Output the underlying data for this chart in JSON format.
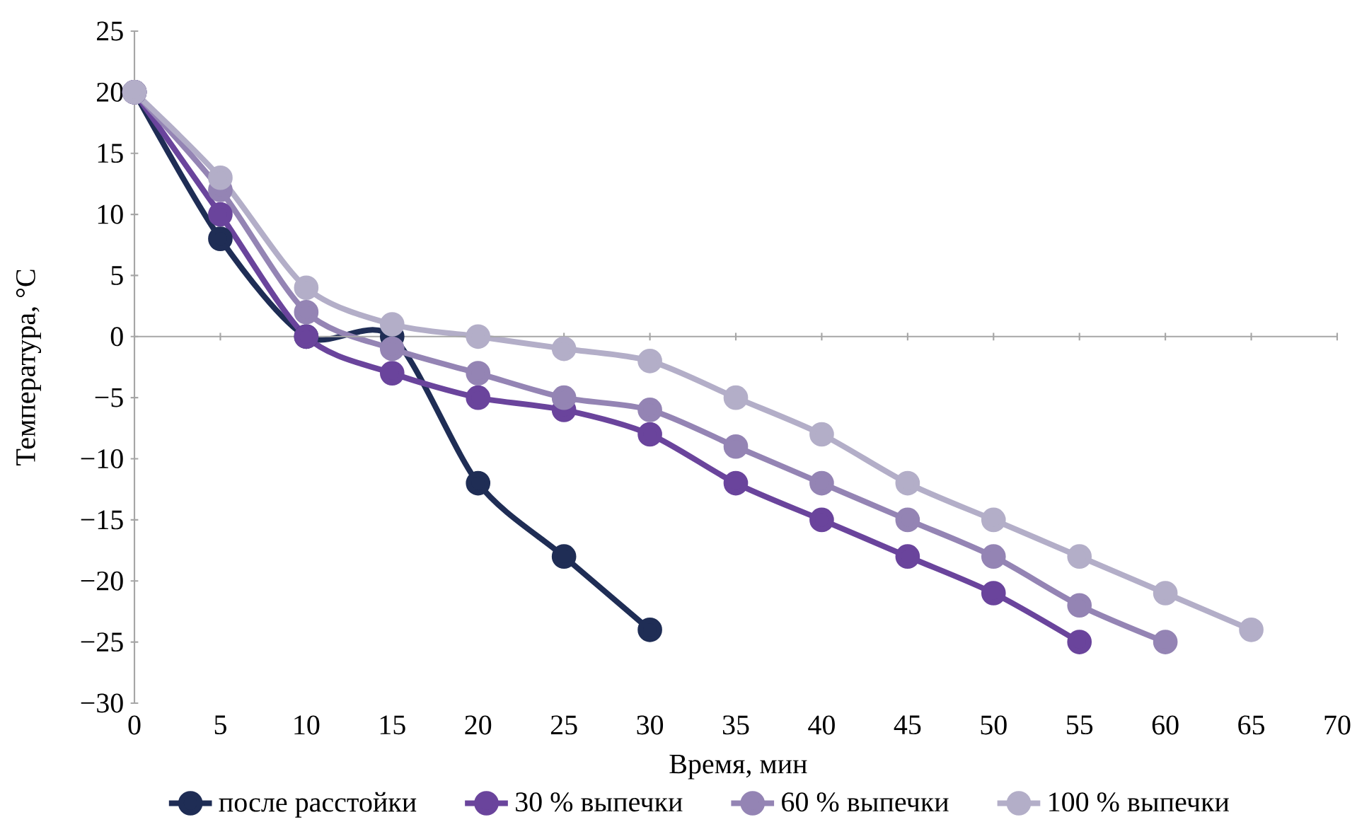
{
  "chart_data": {
    "type": "line",
    "xlabel": "Время, мин",
    "ylabel": "Температура, °C",
    "xlim": [
      0,
      70
    ],
    "xticks": [
      0,
      5,
      10,
      15,
      20,
      25,
      30,
      35,
      40,
      45,
      50,
      55,
      60,
      65,
      70
    ],
    "ylim": [
      -30,
      25
    ],
    "yticks": [
      {
        "value": -30,
        "label": "−30"
      },
      {
        "value": -25,
        "label": "−25"
      },
      {
        "value": -20,
        "label": "−20"
      },
      {
        "value": -15,
        "label": "−15"
      },
      {
        "value": -10,
        "label": "−10"
      },
      {
        "value": -5,
        "label": "−5"
      },
      0,
      5,
      10,
      15,
      20,
      25
    ],
    "legend": "bottom",
    "marker": "circle",
    "line_style": "solid",
    "series": [
      {
        "name": "после расстойки",
        "color": "#1f2d55",
        "x": [
          0,
          5,
          10,
          15,
          20,
          25,
          30
        ],
        "values": [
          20,
          8,
          0,
          0,
          -12,
          -18,
          -24
        ]
      },
      {
        "name": "30 % выпечки",
        "color": "#6a449c",
        "x": [
          0,
          5,
          10,
          15,
          20,
          25,
          30,
          35,
          40,
          45,
          50,
          55
        ],
        "values": [
          20,
          10,
          0,
          -3,
          -5,
          -6,
          -8,
          -12,
          -15,
          -18,
          -21,
          -25
        ]
      },
      {
        "name": "60 % выпечки",
        "color": "#9484b4",
        "x": [
          0,
          5,
          10,
          15,
          20,
          25,
          30,
          35,
          40,
          45,
          50,
          55,
          60
        ],
        "values": [
          20,
          12,
          2,
          -1,
          -3,
          -5,
          -6,
          -9,
          -12,
          -15,
          -18,
          -22,
          -25
        ]
      },
      {
        "name": "100 % выпечки",
        "color": "#b3aec8",
        "x": [
          0,
          5,
          10,
          15,
          20,
          25,
          30,
          35,
          40,
          45,
          50,
          55,
          60,
          65
        ],
        "values": [
          20,
          13,
          4,
          1,
          0,
          -1,
          -2,
          -5,
          -8,
          -12,
          -15,
          -18,
          -21,
          -24
        ]
      }
    ]
  }
}
